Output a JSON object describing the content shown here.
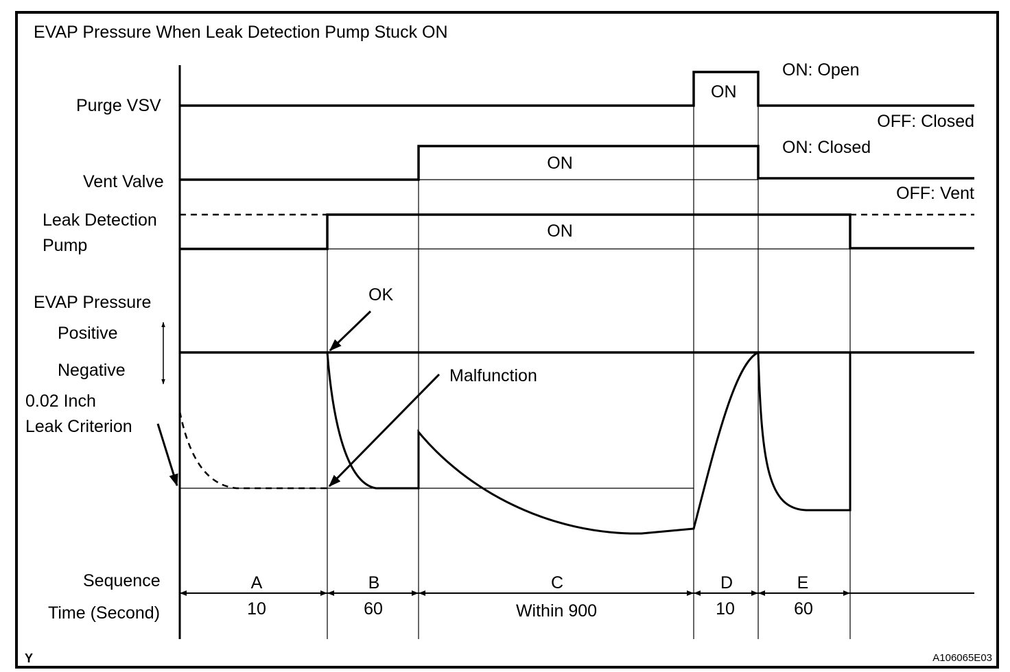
{
  "title": "EVAP Pressure When Leak Detection Pump Stuck ON",
  "signals": {
    "purge_vsv": {
      "label": "Purge VSV",
      "pulse_label": "ON",
      "on_state": "ON: Open",
      "off_state": "OFF: Closed"
    },
    "vent_valve": {
      "label": "Vent Valve",
      "pulse_label": "ON",
      "on_state": "ON: Closed",
      "off_state": "OFF: Vent"
    },
    "leak_detection_pump": {
      "label_line1": "Leak Detection",
      "label_line2": "Pump",
      "pulse_label": "ON"
    }
  },
  "evap_pressure": {
    "label": "EVAP Pressure",
    "positive": "Positive",
    "negative": "Negative",
    "criterion_line1": "0.02 Inch",
    "criterion_line2": "Leak Criterion",
    "ok_label": "OK",
    "malfunction_label": "Malfunction"
  },
  "sequence": {
    "label": "Sequence",
    "time_label": "Time (Second)",
    "phases": [
      {
        "name": "A",
        "time": "10"
      },
      {
        "name": "B",
        "time": "60"
      },
      {
        "name": "C",
        "time": "Within 900"
      },
      {
        "name": "D",
        "time": "10"
      },
      {
        "name": "E",
        "time": "60"
      }
    ]
  },
  "corner_mark": "Y",
  "figure_code": "A106065E03",
  "colors": {
    "ink": "#000000",
    "background": "#ffffff"
  }
}
